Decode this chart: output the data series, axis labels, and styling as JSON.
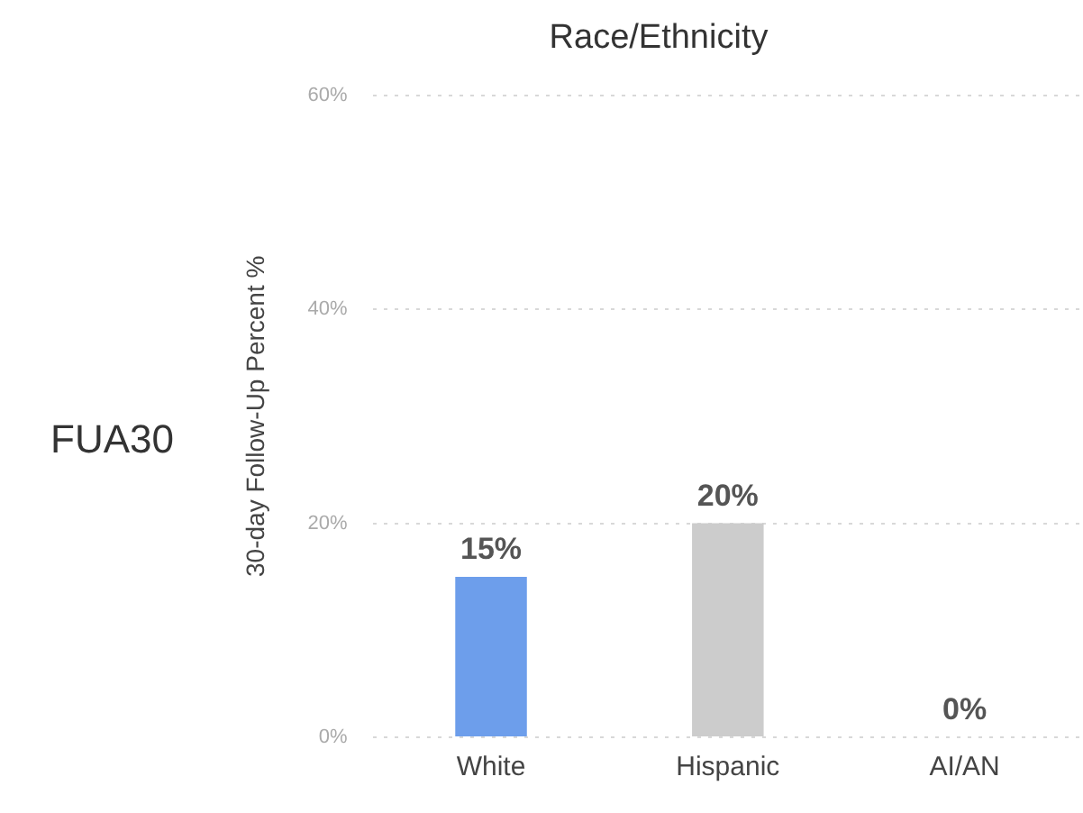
{
  "chart_data": {
    "type": "bar",
    "title": "Race/Ethnicity",
    "ylabel": "30-day Follow-Up Percent %",
    "annotations": [
      "FUA30"
    ],
    "categories": [
      "White",
      "Hispanic",
      "AI/AN"
    ],
    "values": [
      15,
      20,
      0
    ],
    "colors": [
      "#6d9eeb",
      "#cccccc",
      "#cccccc"
    ],
    "value_labels": [
      "15%",
      "20%",
      "0%"
    ],
    "ylim": [
      0,
      60
    ],
    "yticks": [
      {
        "value": 0,
        "label": "0%"
      },
      {
        "value": 20,
        "label": "20%"
      },
      {
        "value": 40,
        "label": "40%"
      },
      {
        "value": 60,
        "label": "60%"
      }
    ],
    "grid": "y",
    "legend": false
  }
}
